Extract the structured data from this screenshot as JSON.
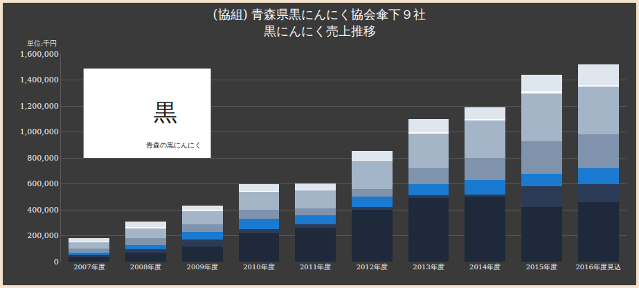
{
  "chart_data": {
    "type": "bar",
    "title": "(協組) 青森県黒にんにく協会傘下９社",
    "subtitle": "黒にんにく売上推移",
    "ylabel": "単位:千円",
    "annotations": [
      "黒",
      "青森の黒にんにく"
    ],
    "categories": [
      "2007年度",
      "2008年度",
      "2009年度",
      "2010年度",
      "2011年度",
      "2012年度",
      "2013年度",
      "2014年度",
      "2015年度",
      "2016年度見込"
    ],
    "stacked": true,
    "grid": true,
    "series": [
      {
        "color": "#1e2a3c",
        "values": [
          40000,
          70000,
          120000,
          220000,
          260000,
          400000,
          490000,
          500000,
          420000,
          460000
        ]
      },
      {
        "color": "#2b3b57",
        "values": [
          15000,
          25000,
          50000,
          30000,
          30000,
          20000,
          20000,
          20000,
          160000,
          140000
        ]
      },
      {
        "color": "#1a7ad0",
        "values": [
          15000,
          35000,
          60000,
          80000,
          70000,
          80000,
          90000,
          110000,
          100000,
          120000
        ]
      },
      {
        "color": "#7f93ad",
        "values": [
          30000,
          50000,
          60000,
          70000,
          50000,
          60000,
          120000,
          170000,
          250000,
          260000
        ]
      },
      {
        "color": "#a5b5c8",
        "values": [
          50000,
          80000,
          100000,
          140000,
          140000,
          220000,
          270000,
          290000,
          370000,
          370000
        ]
      },
      {
        "color": "#ffffff",
        "values": [
          5000,
          5000,
          5000,
          5000,
          5000,
          5000,
          10000,
          10000,
          10000,
          10000
        ]
      },
      {
        "color": "#dfe6ee",
        "values": [
          25000,
          45000,
          35000,
          55000,
          50000,
          70000,
          100000,
          90000,
          130000,
          160000
        ]
      }
    ],
    "ylim": [
      0,
      1600000
    ],
    "yticks": [
      0,
      {
        "value": 200000,
        "label": "200,000"
      },
      {
        "value": 400000,
        "label": "400,000"
      },
      {
        "value": 600000,
        "label": "600,000"
      },
      {
        "value": 800000,
        "label": "800,000"
      },
      {
        "value": 1000000,
        "label": "1,000,000"
      },
      {
        "value": 1200000,
        "label": "1,200,000"
      },
      {
        "value": 1400000,
        "label": "1,400,000"
      },
      {
        "value": 1600000,
        "label": "1,600,000"
      }
    ]
  }
}
